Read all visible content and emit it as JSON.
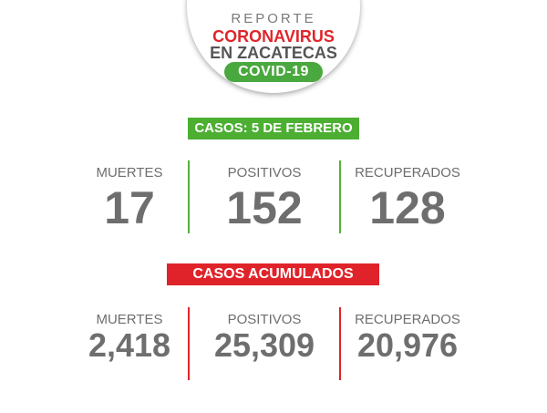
{
  "header": {
    "report_word": "REPORTE",
    "title_line1": "CORONAVIRUS",
    "title_line2": "EN ZACATECAS",
    "pill_label": "COVID-19"
  },
  "daily": {
    "banner": "CASOS: 5 DE FEBRERO",
    "deaths_label": "MUERTES",
    "deaths_value": "17",
    "positives_label": "POSITIVOS",
    "positives_value": "152",
    "recovered_label": "RECUPERADOS",
    "recovered_value": "128"
  },
  "accumulated": {
    "banner": "CASOS ACUMULADOS",
    "deaths_label": "MUERTES",
    "deaths_value": "2,418",
    "positives_label": "POSITIVOS",
    "positives_value": "25,309",
    "recovered_label": "RECUPERADOS",
    "recovered_value": "20,976"
  },
  "colors": {
    "green": "#4caf32",
    "red": "#e0232a",
    "gray_text": "#6e6e6e"
  }
}
